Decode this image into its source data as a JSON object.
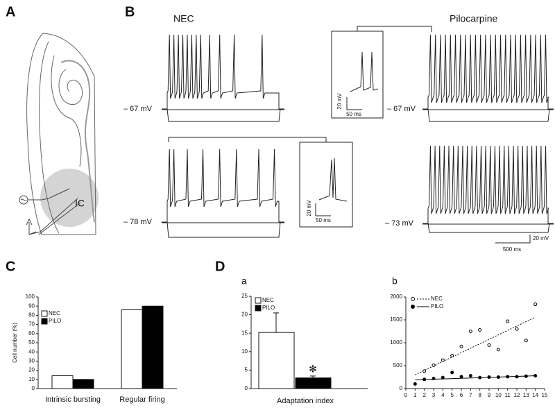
{
  "labels": {
    "a": "A",
    "b": "B",
    "c": "C",
    "d": "D",
    "da": "a",
    "db": "b"
  },
  "panel_a": {
    "region": "IC"
  },
  "panel_b": {
    "nec": "NEC",
    "pilo": "Pilocarpine",
    "v1": "– 67 mV",
    "v2": "– 67 mV",
    "v3": "– 78 mV",
    "v4": "– 73 mV",
    "inset1_v": "20 mV",
    "inset1_t": "50 ms",
    "inset2_v": "20 mV",
    "inset2_t": "50 ms",
    "scale_v": "20 mV",
    "scale_t": "500 ms"
  },
  "chart_data": [
    {
      "type": "bar",
      "y_label": "Cell number (%)",
      "categories": [
        "Intrinsic bursting",
        "Regular firing"
      ],
      "series": [
        {
          "name": "NEC",
          "color": "#ffffff",
          "values": [
            14,
            86
          ]
        },
        {
          "name": "PILO",
          "color": "#000000",
          "values": [
            10,
            90
          ]
        }
      ],
      "ylim": [
        0,
        100
      ],
      "yticks": [
        0,
        10,
        20,
        30,
        40,
        50,
        60,
        70,
        80,
        90,
        100
      ]
    },
    {
      "type": "errorbar",
      "x_label": "Adaptation index",
      "annotation": "✻",
      "series": [
        {
          "name": "NEC",
          "color": "#ffffff",
          "values": [
            15.2
          ],
          "errors": [
            5.3
          ]
        },
        {
          "name": "PILO",
          "color": "#000000",
          "values": [
            2.9
          ],
          "errors": [
            0.5
          ]
        }
      ],
      "ylim": [
        0,
        25
      ],
      "yticks": [
        0,
        5,
        10,
        15,
        20,
        25
      ]
    },
    {
      "type": "scatter",
      "xlim": [
        0,
        15
      ],
      "xticks": [
        0,
        1,
        2,
        3,
        4,
        5,
        6,
        7,
        8,
        9,
        10,
        11,
        12,
        13,
        14,
        15
      ],
      "ylim": [
        0,
        2000
      ],
      "yticks": [
        0,
        500,
        1000,
        1500,
        2000
      ],
      "series": [
        {
          "name": "NEC",
          "color": "#000000",
          "marker": "open",
          "line": "dashed",
          "x": [
            2,
            3,
            4,
            5,
            6,
            7,
            8,
            9,
            10,
            11,
            12,
            13,
            14
          ],
          "values": [
            380,
            510,
            620,
            720,
            920,
            1250,
            1280,
            950,
            850,
            1470,
            1300,
            1050,
            1840
          ],
          "fit": {
            "x": [
              1,
              14
            ],
            "values": [
              300,
              1560
            ]
          }
        },
        {
          "name": "PILO",
          "color": "#000000",
          "marker": "filled",
          "line": "solid",
          "x": [
            1,
            2,
            3,
            4,
            5,
            6,
            7,
            8,
            9,
            10,
            11,
            12,
            13,
            14
          ],
          "values": [
            100,
            200,
            220,
            240,
            350,
            260,
            280,
            240,
            250,
            250,
            260,
            260,
            270,
            280
          ],
          "fit": {
            "x": [
              1,
              14
            ],
            "values": [
              190,
              280
            ]
          }
        }
      ]
    }
  ]
}
